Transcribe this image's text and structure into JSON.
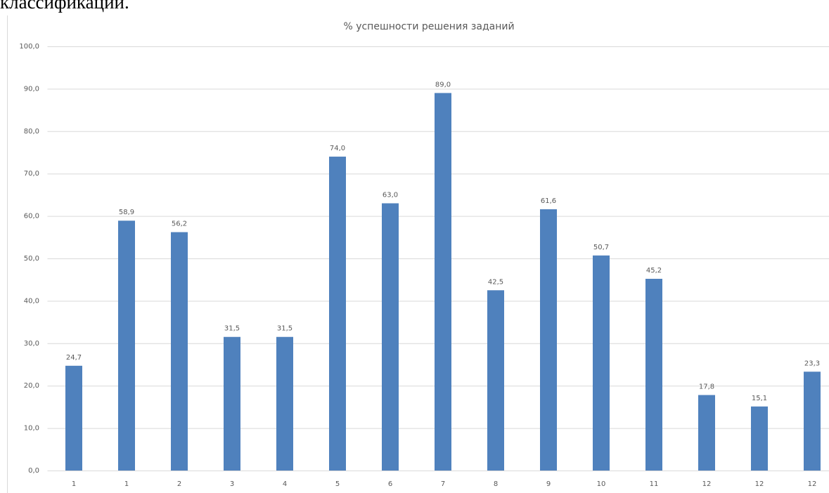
{
  "document": {
    "text": "классификации."
  },
  "chart_data": {
    "type": "bar",
    "title": "% успешности решения заданий",
    "categories": [
      "1",
      "1",
      "2",
      "3",
      "4",
      "5",
      "6",
      "7",
      "8",
      "9",
      "10",
      "11",
      "12",
      "12",
      "12"
    ],
    "values": [
      24.7,
      58.9,
      56.2,
      31.5,
      31.5,
      74.0,
      63.0,
      89.0,
      42.5,
      61.6,
      50.7,
      45.2,
      17.8,
      15.1,
      23.3
    ],
    "value_labels": [
      "24,7",
      "58,9",
      "56,2",
      "31,5",
      "31,5",
      "74,0",
      "63,0",
      "89,0",
      "42,5",
      "61,6",
      "50,7",
      "45,2",
      "17,8",
      "15,1",
      "23,3"
    ],
    "color": "#4f81bd",
    "ylim": [
      0,
      100
    ],
    "yticks": [
      {
        "value": 0,
        "label": "0,0"
      },
      {
        "value": 10,
        "label": "10,0"
      },
      {
        "value": 20,
        "label": "20,0"
      },
      {
        "value": 30,
        "label": "30,0"
      },
      {
        "value": 40,
        "label": "40,0"
      },
      {
        "value": 50,
        "label": "50,0"
      },
      {
        "value": 60,
        "label": "60,0"
      },
      {
        "value": 70,
        "label": "70,0"
      },
      {
        "value": 80,
        "label": "80,0"
      },
      {
        "value": 90,
        "label": "90,0"
      },
      {
        "value": 100,
        "label": "100,0"
      }
    ],
    "grid": true
  }
}
